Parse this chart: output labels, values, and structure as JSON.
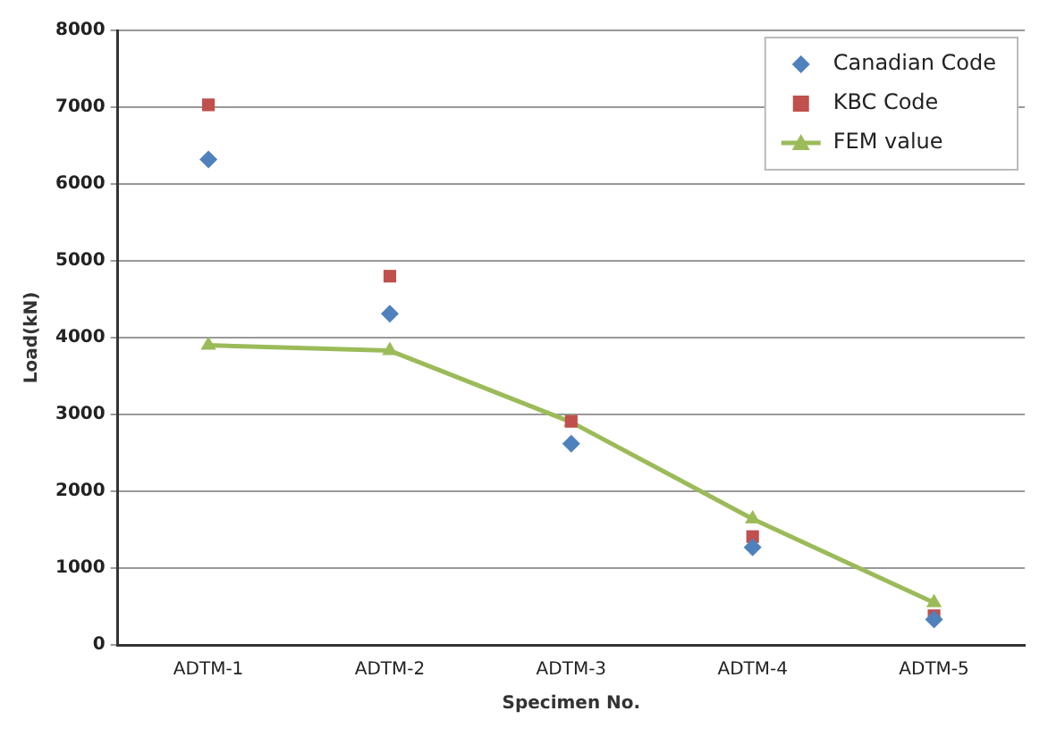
{
  "chart_data": {
    "type": "line",
    "xlabel": "Specimen No.",
    "ylabel": "Load(kN)",
    "categories": [
      "ADTM-1",
      "ADTM-2",
      "ADTM-3",
      "ADTM-4",
      "ADTM-5"
    ],
    "ylim": [
      0,
      8000
    ],
    "yticks": [
      0,
      1000,
      2000,
      3000,
      4000,
      5000,
      6000,
      7000,
      8000
    ],
    "grid": "y",
    "legend": "top right",
    "series": [
      {
        "name": "Canadian Code",
        "type": "scatter",
        "marker": "diamond",
        "color": "#4f81bd",
        "values": [
          6320,
          4310,
          2620,
          1270,
          330
        ]
      },
      {
        "name": "KBC Code",
        "type": "scatter",
        "marker": "square",
        "color": "#c0504d",
        "values": [
          7030,
          4800,
          2910,
          1410,
          380
        ]
      },
      {
        "name": "FEM value",
        "marker": "triangle",
        "color": "#9bbb59",
        "values": [
          3900,
          3830,
          2900,
          1640,
          550
        ]
      }
    ]
  }
}
